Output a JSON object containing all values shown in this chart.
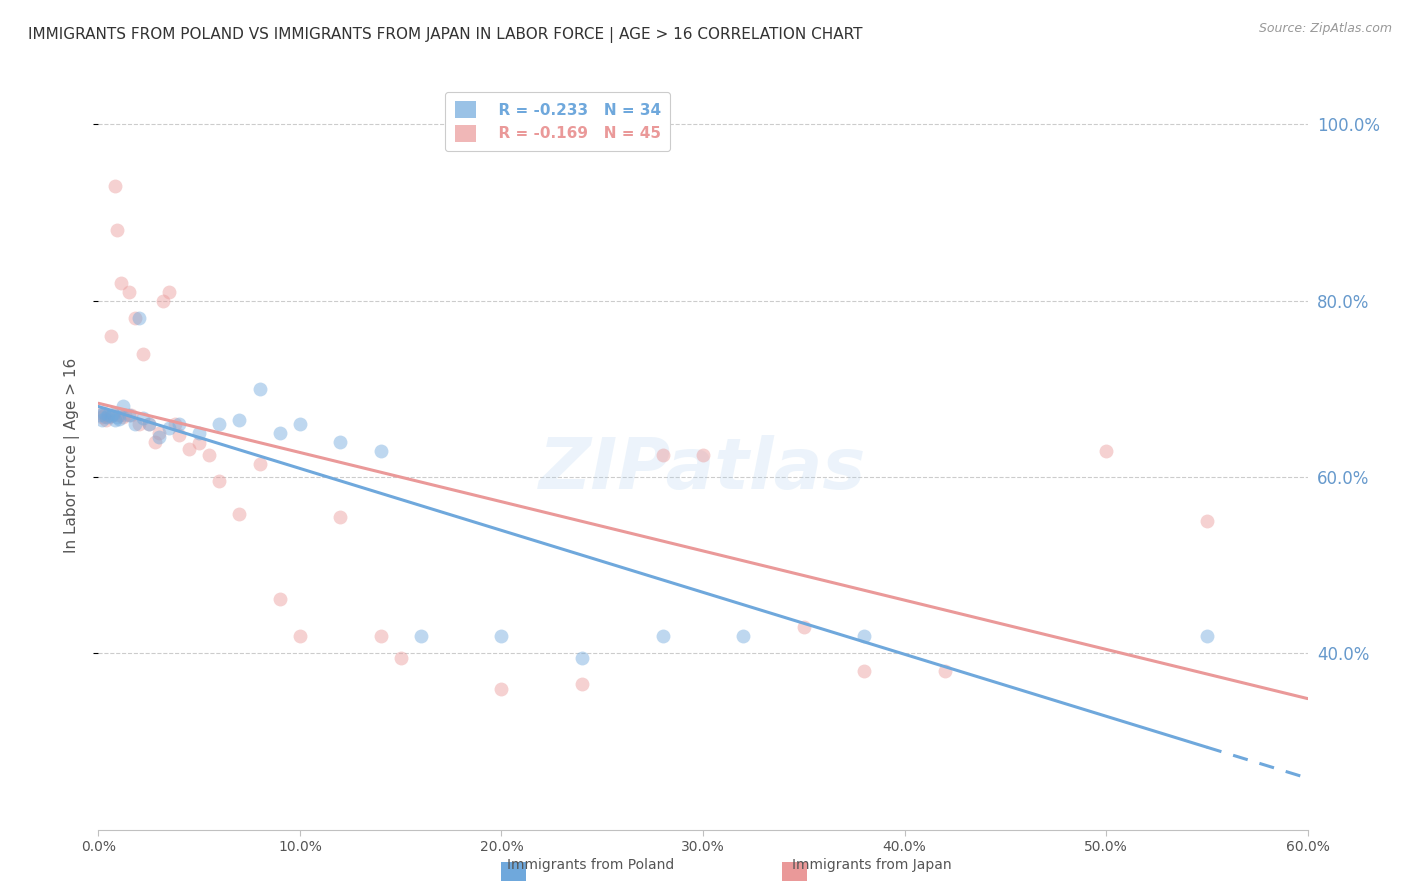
{
  "title": "IMMIGRANTS FROM POLAND VS IMMIGRANTS FROM JAPAN IN LABOR FORCE | AGE > 16 CORRELATION CHART",
  "source": "Source: ZipAtlas.com",
  "ylabel": "In Labor Force | Age > 16",
  "x_min": 0.0,
  "x_max": 0.6,
  "y_min": 0.2,
  "y_max": 1.05,
  "y_ticks": [
    0.4,
    0.6,
    0.8,
    1.0
  ],
  "y_tick_labels": [
    "40.0%",
    "60.0%",
    "80.0%",
    "100.0%"
  ],
  "x_ticks": [
    0.0,
    0.1,
    0.2,
    0.3,
    0.4,
    0.5,
    0.6
  ],
  "x_tick_labels": [
    "0.0%",
    "10.0%",
    "20.0%",
    "30.0%",
    "40.0%",
    "50.0%",
    "60.0%"
  ],
  "poland_color": "#6fa8dc",
  "japan_color": "#ea9999",
  "legend_R_poland": "R = -0.233",
  "legend_N_poland": "N = 34",
  "legend_R_japan": "R = -0.169",
  "legend_N_japan": "N = 45",
  "poland_x": [
    0.001,
    0.002,
    0.003,
    0.004,
    0.005,
    0.006,
    0.007,
    0.008,
    0.009,
    0.01,
    0.012,
    0.015,
    0.018,
    0.02,
    0.022,
    0.025,
    0.03,
    0.035,
    0.04,
    0.05,
    0.06,
    0.07,
    0.08,
    0.09,
    0.1,
    0.12,
    0.14,
    0.16,
    0.2,
    0.24,
    0.28,
    0.32,
    0.38,
    0.55
  ],
  "poland_y": [
    0.67,
    0.665,
    0.672,
    0.668,
    0.67,
    0.669,
    0.671,
    0.665,
    0.668,
    0.666,
    0.68,
    0.67,
    0.66,
    0.78,
    0.667,
    0.66,
    0.645,
    0.655,
    0.66,
    0.65,
    0.66,
    0.665,
    0.7,
    0.65,
    0.66,
    0.64,
    0.63,
    0.42,
    0.42,
    0.395,
    0.42,
    0.42,
    0.42,
    0.42
  ],
  "japan_x": [
    0.001,
    0.002,
    0.003,
    0.004,
    0.005,
    0.006,
    0.007,
    0.008,
    0.009,
    0.01,
    0.011,
    0.012,
    0.013,
    0.015,
    0.016,
    0.018,
    0.02,
    0.022,
    0.025,
    0.028,
    0.03,
    0.032,
    0.035,
    0.038,
    0.04,
    0.045,
    0.05,
    0.055,
    0.06,
    0.07,
    0.08,
    0.09,
    0.1,
    0.12,
    0.14,
    0.15,
    0.2,
    0.24,
    0.28,
    0.3,
    0.35,
    0.38,
    0.42,
    0.5,
    0.55
  ],
  "japan_y": [
    0.672,
    0.668,
    0.67,
    0.665,
    0.668,
    0.76,
    0.67,
    0.93,
    0.88,
    0.67,
    0.82,
    0.668,
    0.67,
    0.81,
    0.67,
    0.78,
    0.66,
    0.74,
    0.66,
    0.64,
    0.65,
    0.8,
    0.81,
    0.66,
    0.648,
    0.632,
    0.638,
    0.625,
    0.595,
    0.558,
    0.615,
    0.462,
    0.42,
    0.555,
    0.42,
    0.395,
    0.36,
    0.365,
    0.625,
    0.625,
    0.43,
    0.38,
    0.38,
    0.63,
    0.55
  ],
  "watermark": "ZIPatlas",
  "bg_color": "#ffffff",
  "grid_color": "#cccccc",
  "axis_color": "#c0c0c0",
  "title_color": "#333333",
  "right_label_color": "#6699cc",
  "marker_size": 100,
  "marker_alpha": 0.45,
  "line_width": 2.2,
  "poland_line_solid_end": 0.55,
  "japan_line_end": 0.6
}
